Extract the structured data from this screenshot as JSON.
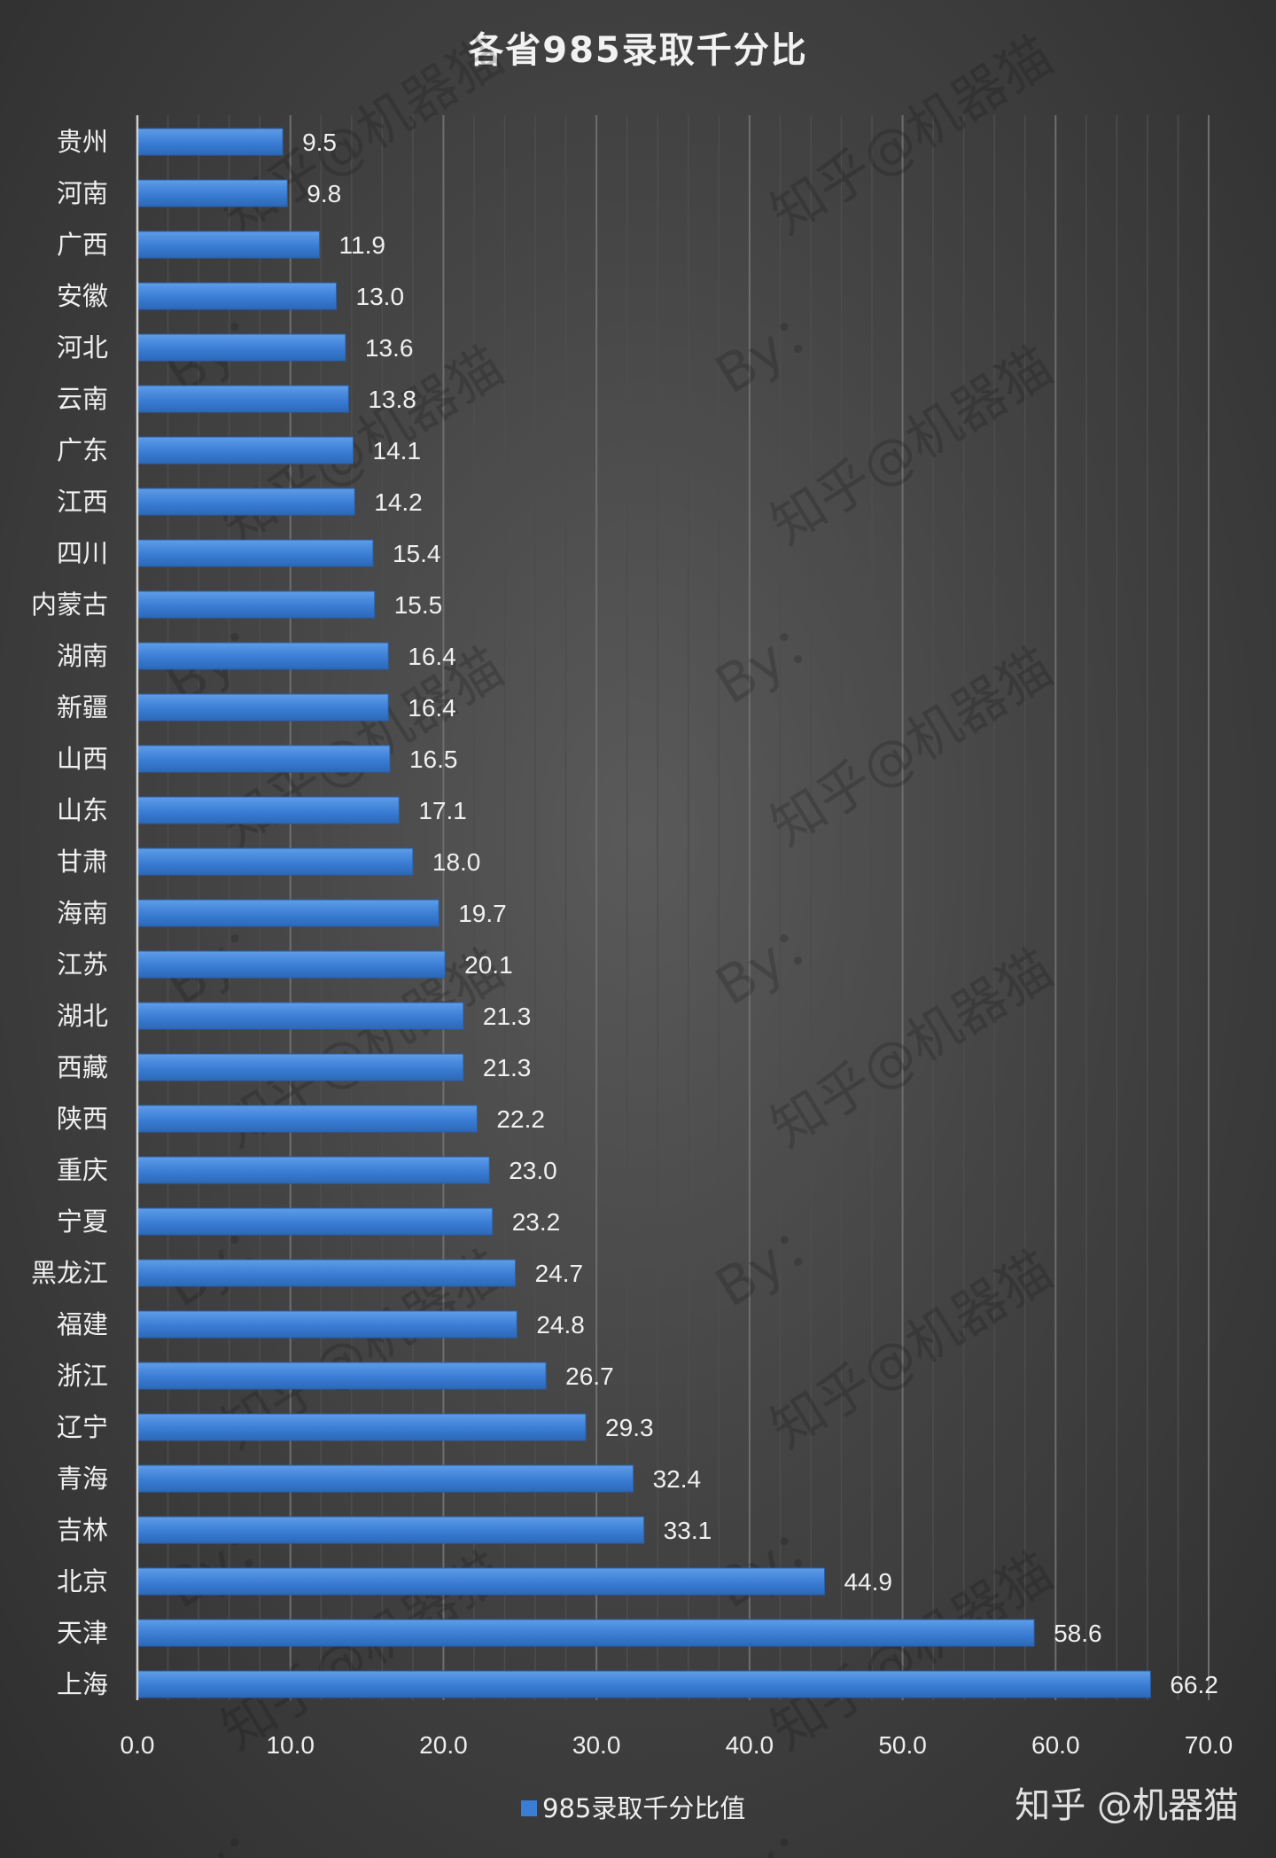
{
  "chart_data": {
    "type": "bar",
    "orientation": "horizontal",
    "title": "各省985录取千分比",
    "categories": [
      "贵州",
      "河南",
      "广西",
      "安徽",
      "河北",
      "云南",
      "广东",
      "江西",
      "四川",
      "内蒙古",
      "湖南",
      "新疆",
      "山西",
      "山东",
      "甘肃",
      "海南",
      "江苏",
      "湖北",
      "西藏",
      "陕西",
      "重庆",
      "宁夏",
      "黑龙江",
      "福建",
      "浙江",
      "辽宁",
      "青海",
      "吉林",
      "北京",
      "天津",
      "上海"
    ],
    "series": [
      {
        "name": "985录取千分比值",
        "color": "#3a7dd4",
        "values": [
          9.5,
          9.8,
          11.9,
          13.0,
          13.6,
          13.8,
          14.1,
          14.2,
          15.4,
          15.5,
          16.4,
          16.4,
          16.5,
          17.1,
          18.0,
          19.7,
          20.1,
          21.3,
          21.3,
          22.2,
          23.0,
          23.2,
          24.7,
          24.8,
          26.7,
          29.3,
          32.4,
          33.1,
          44.9,
          58.6,
          66.2
        ],
        "labels": [
          "9.5",
          "9.8",
          "11.9",
          "13.0",
          "13.6",
          "13.8",
          "14.1",
          "14.2",
          "15.4",
          "15.5",
          "16.4",
          "16.4",
          "16.5",
          "17.1",
          "18.0",
          "19.7",
          "20.1",
          "21.3",
          "21.3",
          "22.2",
          "23.0",
          "23.2",
          "24.7",
          "24.8",
          "26.7",
          "29.3",
          "32.4",
          "33.1",
          "44.9",
          "58.6",
          "66.2"
        ]
      }
    ],
    "xlim": [
      0,
      70
    ],
    "x_ticks": [
      0,
      10,
      20,
      30,
      40,
      50,
      60,
      70
    ],
    "x_tick_labels": [
      "0.0",
      "10.0",
      "20.0",
      "30.0",
      "40.0",
      "50.0",
      "60.0",
      "70.0"
    ],
    "xlabel": "",
    "ylabel": "",
    "grid": true,
    "legend_position": "bottom"
  },
  "watermark": "知乎@机器猫",
  "watermark_by": "By：",
  "signature": "知乎 @机器猫",
  "colors": {
    "bar": "#3a7dd4",
    "bar_highlight": "#5b9bea",
    "background": "#444444"
  }
}
